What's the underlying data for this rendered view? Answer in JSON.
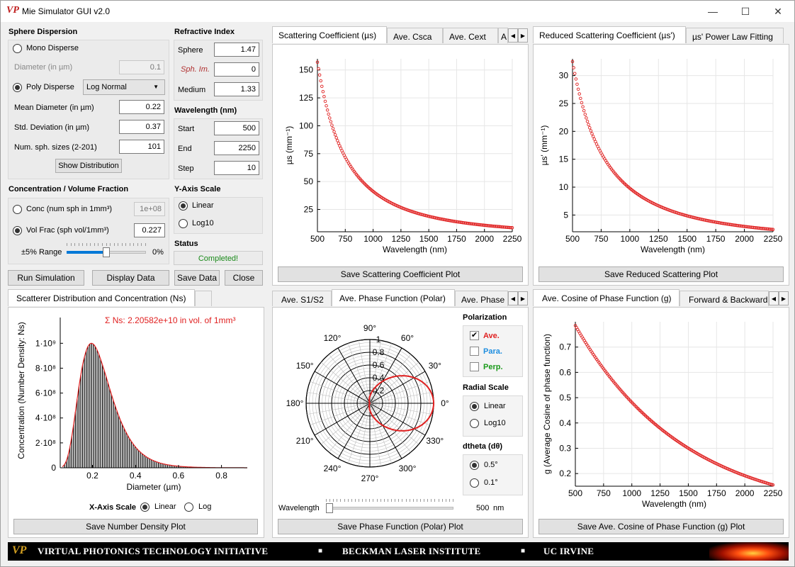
{
  "window": {
    "title": "Mie Simulator GUI v2.0",
    "logo": "VP",
    "minimize_icon": "—",
    "maximize_icon": "☐",
    "close_icon": "✕"
  },
  "sphere_dispersion": {
    "header": "Sphere Dispersion",
    "mono_label": "Mono Disperse",
    "diameter_label": "Diameter (in µm)",
    "diameter_value": "0.1",
    "poly_label": "Poly Disperse",
    "distribution_selected": "Log Normal",
    "mean_label": "Mean Diameter (in µm)",
    "mean_value": "0.22",
    "std_label": "Std. Deviation (in µm)",
    "std_value": "0.37",
    "num_label": "Num. sph. sizes (2-201)",
    "num_value": "101",
    "show_dist_label": "Show Distribution"
  },
  "refractive_index": {
    "header": "Refractive Index",
    "sphere_label": "Sphere",
    "sphere_value": "1.47",
    "im_label": "Sph. Im.",
    "im_value": "0",
    "medium_label": "Medium",
    "medium_value": "1.33"
  },
  "wavelength": {
    "header": "Wavelength (nm)",
    "start_label": "Start",
    "start_value": "500",
    "end_label": "End",
    "end_value": "2250",
    "step_label": "Step",
    "step_value": "10"
  },
  "concentration": {
    "header": "Concentration / Volume Fraction",
    "conc_label": "Conc (num sph in 1mm³)",
    "conc_value": "1e+08",
    "vol_label": "Vol Frac (sph vol/1mm³)",
    "vol_value": "0.227",
    "range_label": "±5% Range",
    "range_value": "0%",
    "slider_fraction": 0.5
  },
  "yaxis_scale": {
    "header": "Y-Axis Scale",
    "linear_label": "Linear",
    "log_label": "Log10"
  },
  "status": {
    "header": "Status",
    "text": "Completed!",
    "color": "#1a8a1a"
  },
  "actions": {
    "run": "Run Simulation",
    "display": "Display Data",
    "save": "Save Data",
    "close": "Close"
  },
  "top_left_tabs": {
    "tabs": [
      "Scattering Coefficient (µs)",
      "Ave. Csca",
      "Ave. Cext",
      "A"
    ],
    "save_label": "Save Scattering Coefficient Plot"
  },
  "top_right_tabs": {
    "tabs": [
      "Reduced Scattering Coefficient (µs')",
      "µs' Power Law Fitting"
    ],
    "save_label": "Save Reduced Scattering Plot"
  },
  "bottom_left_tabs": {
    "tabs": [
      "Scatterer Distribution and Concentration (Ns)",
      ""
    ],
    "save_label": "Save Number Density Plot",
    "annotation": "Σ Ns: 2.20582e+10 in vol. of 1mm³",
    "xaxis_scale_label": "X-Axis Scale",
    "xaxis_linear": "Linear",
    "xaxis_log": "Log"
  },
  "bottom_mid_tabs": {
    "tabs": [
      "Ave. S1/S2",
      "Ave. Phase Function (Polar)",
      "Ave. Phase"
    ],
    "save_label": "Save Phase Function (Polar) Plot",
    "polarization_header": "Polarization",
    "pol_ave": "Ave.",
    "pol_para": "Para.",
    "pol_perp": "Perp.",
    "radial_header": "Radial Scale",
    "radial_linear": "Linear",
    "radial_log": "Log10",
    "dtheta_header": "dtheta (dθ)",
    "dtheta_a": "0.5°",
    "dtheta_b": "0.1°",
    "wavelength_label": "Wavelength",
    "wavelength_value": "500",
    "wavelength_unit": "nm",
    "wavelength_slider_fraction": 0.0
  },
  "bottom_right_tabs": {
    "tabs": [
      "Ave. Cosine of Phase Function (g)",
      "Forward & Backward"
    ],
    "save_label": "Save Ave. Cosine of Phase Function (g) Plot"
  },
  "footer": {
    "logo": "VP",
    "items": [
      "VIRTUAL PHOTONICS TECHNOLOGY INITIATIVE",
      "■",
      "BECKMAN LASER INSTITUTE",
      "■",
      "UC IRVINE"
    ]
  },
  "chart_data": [
    {
      "type": "scatter",
      "id": "mus",
      "xlabel": "Wavelength (nm)",
      "ylabel": "µs (mm⁻¹)",
      "xlim": [
        500,
        2250
      ],
      "ylim": [
        5,
        160
      ],
      "xticks": [
        500,
        750,
        1000,
        1250,
        1500,
        1750,
        2000,
        2250
      ],
      "yticks": [
        25,
        50,
        75,
        100,
        125,
        150
      ],
      "model": {
        "form": "power",
        "a": 157,
        "x0": 500,
        "b": 1.93
      },
      "color": "#e02020",
      "grid": true
    },
    {
      "type": "scatter",
      "id": "musp",
      "xlabel": "Wavelength (nm)",
      "ylabel": "µs' (mm⁻¹)",
      "xlim": [
        500,
        2250
      ],
      "ylim": [
        2,
        33
      ],
      "xticks": [
        500,
        750,
        1000,
        1250,
        1500,
        1750,
        2000,
        2250
      ],
      "yticks": [
        5,
        10,
        15,
        20,
        25,
        30
      ],
      "model": {
        "form": "power",
        "a": 32.5,
        "x0": 500,
        "b": 1.73
      },
      "color": "#e02020",
      "grid": true
    },
    {
      "type": "bar",
      "id": "ns",
      "xlabel": "Diameter (µm)",
      "ylabel": "Concentration (Number Density: Ns)",
      "xlim": [
        0.05,
        0.92
      ],
      "ylim": [
        0,
        1150000000.0
      ],
      "xticks": [
        0.2,
        0.4,
        0.6,
        0.8
      ],
      "ytick_labels": [
        "0",
        "2·10⁸",
        "4·10⁸",
        "6·10⁸",
        "8·10⁸",
        "1·10⁹"
      ],
      "yticks": [
        0,
        200000000.0,
        400000000.0,
        600000000.0,
        800000000.0,
        1000000000.0
      ],
      "model": {
        "form": "lognormal",
        "peak_x": 0.195,
        "peak_y": 1000000000.0,
        "sigma": 0.38
      },
      "color": "#000000",
      "curve_color": "#e02020"
    },
    {
      "type": "polar",
      "id": "phase",
      "angle_labels": [
        "0°",
        "30°",
        "60°",
        "90°",
        "120°",
        "150°",
        "180°",
        "210°",
        "240°",
        "270°",
        "300°",
        "330°"
      ],
      "radial_labels": [
        "0.2",
        "0.4",
        "0.6",
        "0.8",
        "1"
      ],
      "lobe": {
        "max": 1.0,
        "exponent": 3.2
      },
      "color": "#e02020"
    },
    {
      "type": "scatter",
      "id": "g",
      "xlabel": "Wavelength (nm)",
      "ylabel": "g (Average Cosine of phase function)",
      "xlim": [
        500,
        2250
      ],
      "ylim": [
        0.15,
        0.8
      ],
      "xticks": [
        500,
        750,
        1000,
        1250,
        1500,
        1750,
        2000,
        2250
      ],
      "yticks": [
        0.2,
        0.3,
        0.4,
        0.5,
        0.6,
        0.7
      ],
      "model": {
        "form": "exp",
        "start": 0.785,
        "end": 0.155,
        "k": 0.6
      },
      "color": "#e02020",
      "grid": true
    }
  ]
}
